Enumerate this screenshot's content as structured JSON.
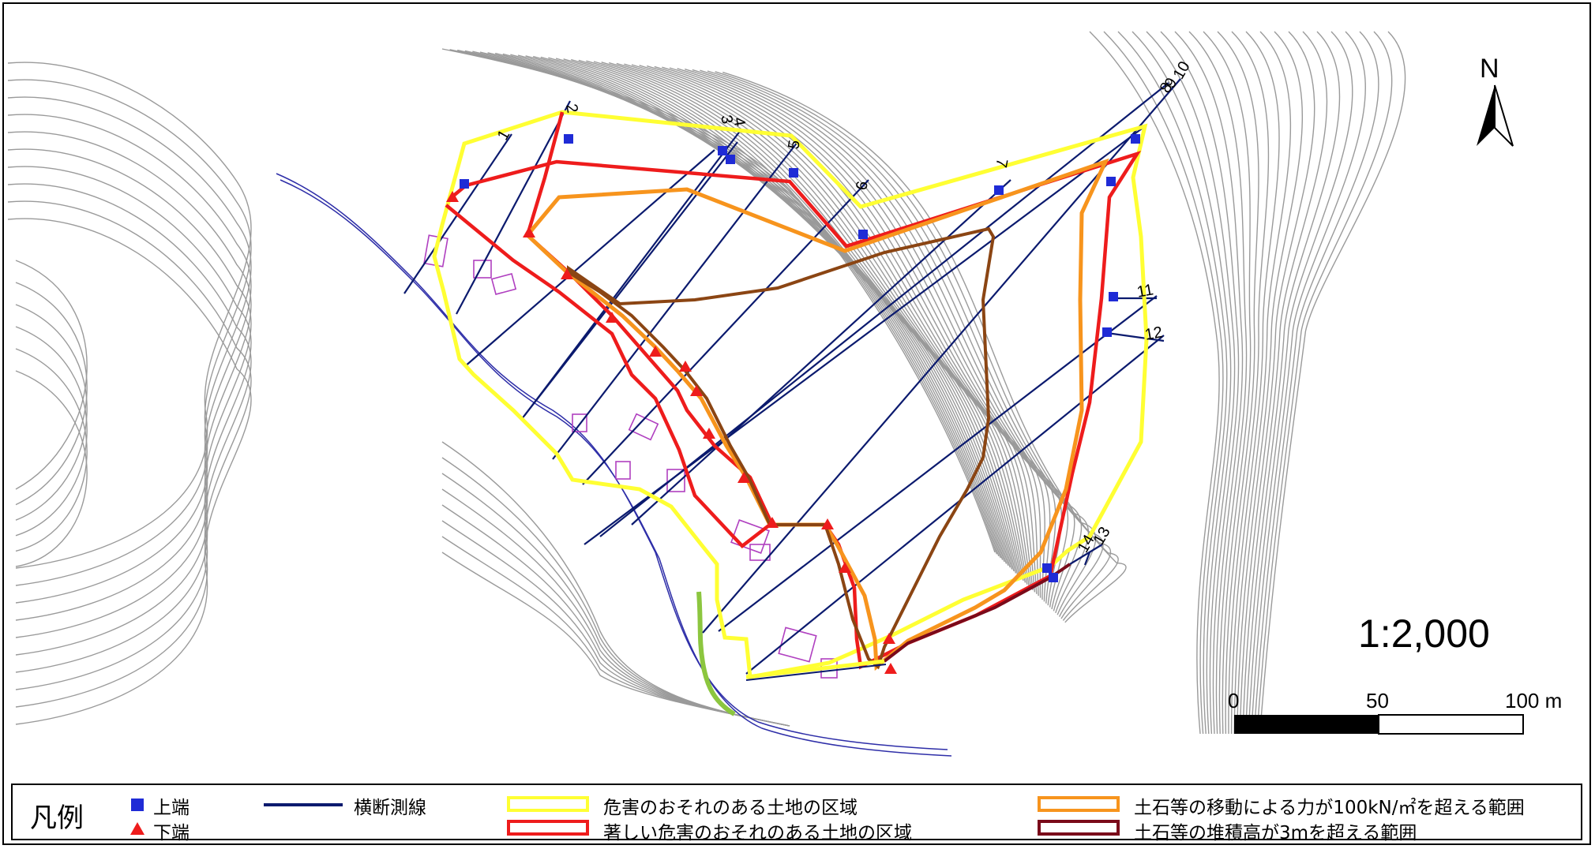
{
  "map": {
    "north_label": "N",
    "scale_text": "1:2,000",
    "scalebar": {
      "tick_0": "0",
      "tick_50": "50",
      "tick_100": "100 m"
    },
    "section_labels": [
      "1",
      "2",
      "3",
      "4",
      "5",
      "6",
      "7",
      "8",
      "9",
      "10",
      "11",
      "12",
      "13",
      "14"
    ],
    "colors": {
      "danger_zone": "#ffff33",
      "severe_zone": "#ee1c1c",
      "force_zone": "#f7941d",
      "deposit_zone": "#8b4513",
      "deposit_outline": "#7a0a1a",
      "transect": "#0b1a6e",
      "upper_marker": "#1f2bd6",
      "lower_marker": "#ee1c1c",
      "contour": "#9a9a9a",
      "building": "#b040c0",
      "river": "#2e2ea8",
      "green_band": "#8cc63f"
    }
  },
  "legend": {
    "title": "凡例",
    "upper_end": "上端",
    "lower_end": "下端",
    "transect": "横断測線",
    "danger_zone": "危害のおそれのある土地の区域",
    "severe_zone": "著しい危害のおそれのある土地の区域",
    "force_zone": "土石等の移動による力が100kN/㎡を超える範囲",
    "deposit_zone": "土石等の堆積高が3mを超える範囲"
  }
}
